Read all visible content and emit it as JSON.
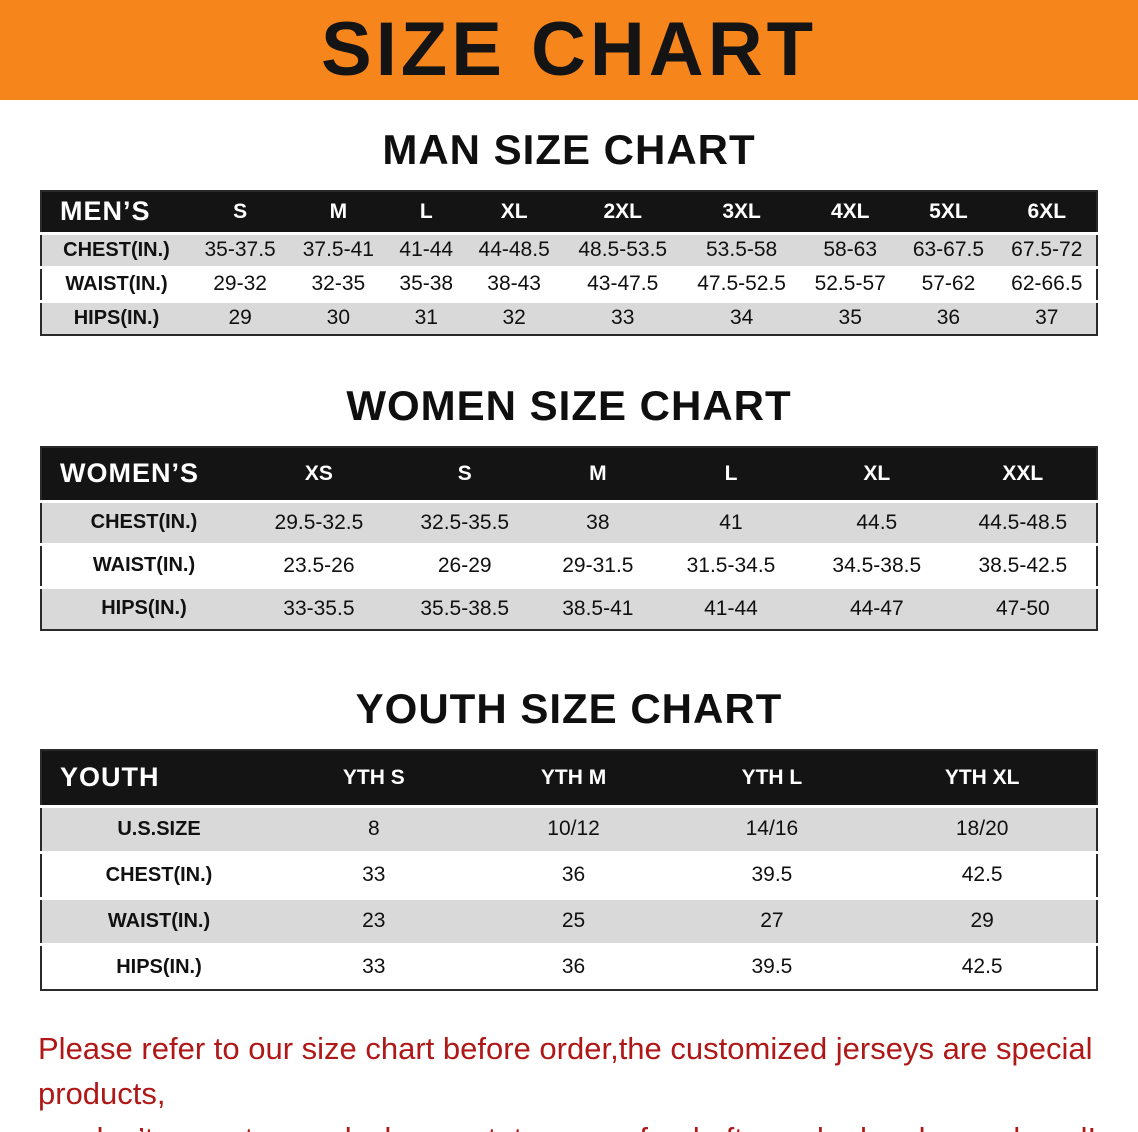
{
  "banner": {
    "title": "SIZE CHART",
    "background_color": "#F6851C",
    "text_color": "#141414"
  },
  "sections": [
    {
      "id": "man",
      "title": "MAN SIZE CHART",
      "table": {
        "header_label": "MEN’S",
        "columns": [
          "S",
          "M",
          "L",
          "XL",
          "2XL",
          "3XL",
          "4XL",
          "5XL",
          "6XL"
        ],
        "rows": [
          {
            "label": "CHEST(IN.)",
            "values": [
              "35-37.5",
              "37.5-41",
              "41-44",
              "44-48.5",
              "48.5-53.5",
              "53.5-58",
              "58-63",
              "63-67.5",
              "67.5-72"
            ]
          },
          {
            "label": "WAIST(IN.)",
            "values": [
              "29-32",
              "32-35",
              "35-38",
              "38-43",
              "43-47.5",
              "47.5-52.5",
              "52.5-57",
              "57-62",
              "62-66.5"
            ]
          },
          {
            "label": "HIPS(IN.)",
            "values": [
              "29",
              "30",
              "31",
              "32",
              "33",
              "34",
              "35",
              "36",
              "37"
            ]
          }
        ]
      }
    },
    {
      "id": "women",
      "title": "WOMEN SIZE CHART",
      "table": {
        "header_label": "WOMEN’S",
        "columns": [
          "XS",
          "S",
          "M",
          "L",
          "XL",
          "XXL"
        ],
        "rows": [
          {
            "label": "CHEST(IN.)",
            "values": [
              "29.5-32.5",
              "32.5-35.5",
              "38",
              "41",
              "44.5",
              "44.5-48.5"
            ]
          },
          {
            "label": "WAIST(IN.)",
            "values": [
              "23.5-26",
              "26-29",
              "29-31.5",
              "31.5-34.5",
              "34.5-38.5",
              "38.5-42.5"
            ]
          },
          {
            "label": "HIPS(IN.)",
            "values": [
              "33-35.5",
              "35.5-38.5",
              "38.5-41",
              "41-44",
              "44-47",
              "47-50"
            ]
          }
        ]
      }
    },
    {
      "id": "youth",
      "title": "YOUTH SIZE CHART",
      "table": {
        "header_label": "YOUTH",
        "columns": [
          "YTH S",
          "YTH M",
          "YTH L",
          "YTH XL"
        ],
        "rows": [
          {
            "label": "U.S.SIZE",
            "values": [
              "8",
              "10/12",
              "14/16",
              "18/20"
            ]
          },
          {
            "label": "CHEST(IN.)",
            "values": [
              "33",
              "36",
              "39.5",
              "42.5"
            ]
          },
          {
            "label": "WAIST(IN.)",
            "values": [
              "23",
              "25",
              "27",
              "29"
            ]
          },
          {
            "label": "HIPS(IN.)",
            "values": [
              "33",
              "36",
              "39.5",
              "42.5"
            ]
          }
        ]
      }
    }
  ],
  "disclaimer": {
    "line1": "Please refer to our size chart before order,the customized jerseys are special products,",
    "line2": "we don’t accept cancel, change, teturn or refund after order has been placed!",
    "text_color": "#B01818"
  }
}
